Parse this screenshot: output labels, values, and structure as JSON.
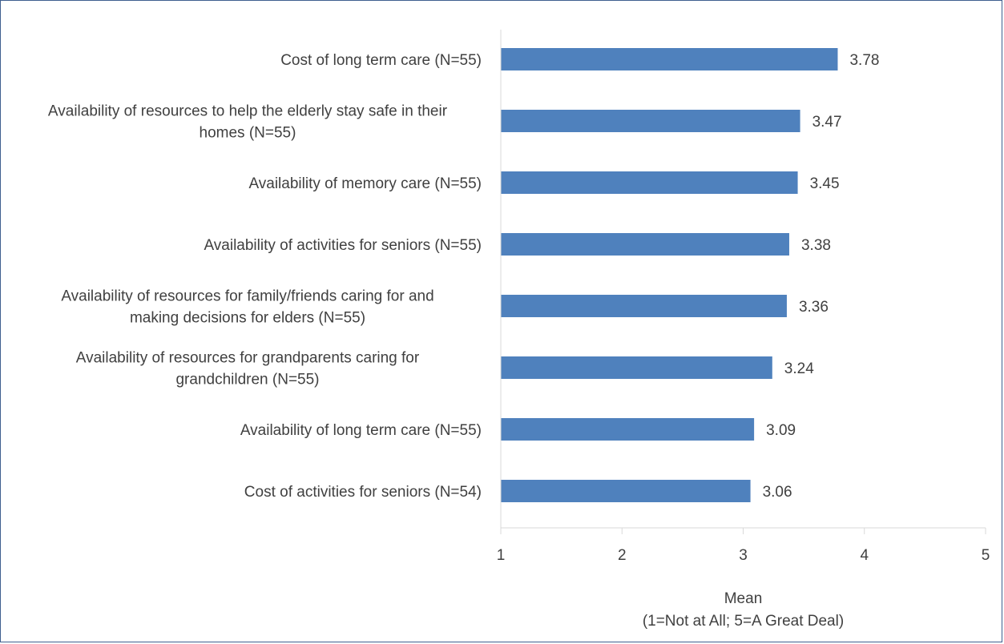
{
  "chart_data": {
    "type": "bar",
    "orientation": "horizontal",
    "categories": [
      [
        "Cost of long term care (N=55)"
      ],
      [
        "Availability of resources to help the elderly stay safe in their",
        "homes (N=55)"
      ],
      [
        "Availability of memory care (N=55)"
      ],
      [
        "Availability of activities for seniors (N=55)"
      ],
      [
        "Availability of resources for family/friends caring for and",
        "making decisions for elders (N=55)"
      ],
      [
        "Availability of resources for grandparents caring for",
        "grandchildren (N=55)"
      ],
      [
        "Availability of long term care (N=55)"
      ],
      [
        "Cost of activities for seniors (N=54)"
      ]
    ],
    "values": [
      3.78,
      3.47,
      3.45,
      3.38,
      3.36,
      3.24,
      3.09,
      3.06
    ],
    "value_labels": [
      "3.78",
      "3.47",
      "3.45",
      "3.38",
      "3.36",
      "3.24",
      "3.09",
      "3.06"
    ],
    "xlim": [
      1,
      5
    ],
    "xticks": [
      1,
      2,
      3,
      4,
      5
    ],
    "xlabel": [
      "Mean",
      "(1=Not at All; 5=A Great Deal)"
    ],
    "bar_color": "#4f81bd",
    "axis_color": "#d9d9d9",
    "text_color": "#404040",
    "border_color": "#3f5f8f",
    "grid": false,
    "legend": "none"
  }
}
